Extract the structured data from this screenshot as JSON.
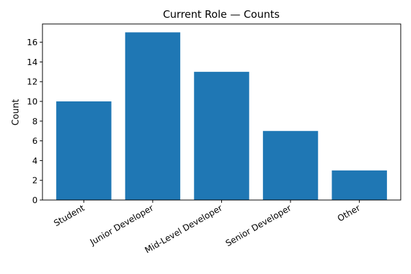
{
  "chart_data": {
    "type": "bar",
    "title": "Current Role — Counts",
    "xlabel": "",
    "ylabel": "Count",
    "categories": [
      "Student",
      "Junior Developer",
      "Mid-Level Developer",
      "Senior Developer",
      "Other"
    ],
    "values": [
      10,
      17,
      13,
      7,
      3
    ],
    "ylim": [
      0,
      17.85
    ],
    "yticks": [
      0,
      2,
      4,
      6,
      8,
      10,
      12,
      14,
      16
    ],
    "bar_color": "#1f77b4",
    "grid": false,
    "x_tick_rotation_deg": 30
  }
}
